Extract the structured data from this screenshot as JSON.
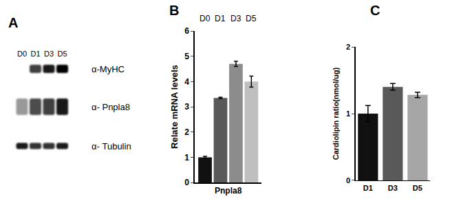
{
  "blot": {
    "title": "A",
    "lanes": [
      "D0",
      "D1",
      "D3",
      "D5"
    ],
    "rows": [
      {
        "label": "α-MyHC",
        "intensity": [
          0,
          0.75,
          0.9,
          1
        ]
      },
      {
        "label": "α- Pnpla8",
        "intensity": [
          0.4,
          0.7,
          0.75,
          0.9
        ]
      },
      {
        "label": "α- Tubulin",
        "intensity": [
          0.9,
          0.8,
          0.8,
          0.9
        ]
      }
    ]
  },
  "chart_data": [
    {
      "type": "bar",
      "title": "B",
      "categories": [
        "Pnpla8"
      ],
      "series": [
        {
          "name": "D0",
          "color": "#111111",
          "values": [
            1.0
          ],
          "errors": [
            0.04
          ]
        },
        {
          "name": "D1",
          "color": "#595959",
          "values": [
            3.35
          ],
          "errors": [
            0.03
          ]
        },
        {
          "name": "D3",
          "color": "#8c8c8c",
          "values": [
            4.7
          ],
          "errors": [
            0.1
          ]
        },
        {
          "name": "D5",
          "color": "#bfbfbf",
          "values": [
            4.0
          ],
          "errors": [
            0.22
          ]
        }
      ],
      "y_label": "Relate mRNA levels",
      "ylim": [
        0,
        6
      ],
      "yticks": [
        0,
        1,
        2,
        3,
        4,
        5,
        6
      ],
      "grid": false
    },
    {
      "type": "bar",
      "title": "C",
      "categories": [
        "D1",
        "D3",
        "D5"
      ],
      "values": [
        1.0,
        1.4,
        1.28
      ],
      "errors": [
        0.12,
        0.05,
        0.04
      ],
      "colors": [
        "#111111",
        "#595959",
        "#a6a6a6"
      ],
      "y_label": "Cardiolipin ratio(nmol/ug)",
      "ylim": [
        0,
        2
      ],
      "yticks": [
        0,
        1,
        2
      ],
      "grid": false
    }
  ]
}
